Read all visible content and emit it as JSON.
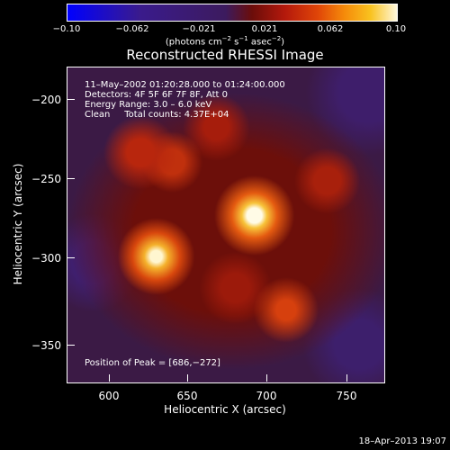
{
  "colorbar": {
    "ticks": [
      "−0.10",
      "−0.062",
      "−0.021",
      "0.021",
      "0.062",
      "0.10"
    ],
    "units": "(photons cm",
    "units_exp1": "−2",
    "units_mid1": " s",
    "units_exp2": "−1",
    "units_mid2": " asec",
    "units_exp3": "−2",
    "units_end": ")"
  },
  "title": "Reconstructed RHESSI Image",
  "info": {
    "line1": "11–May–2002 01:20:28.000 to 01:24:00.000",
    "line2": "Detectors: 4F 5F 6F 7F 8F, Att 0",
    "line3": "Energy Range: 3.0 – 6.0 keV",
    "line4": "Clean     Total counts: 4.37E+04"
  },
  "peak": "Position of Peak = [686,−272]",
  "axes": {
    "xlabel": "Heliocentric X (arcsec)",
    "ylabel": "Heliocentric Y (arcsec)",
    "xticks": [
      "600",
      "650",
      "700",
      "750"
    ],
    "yticks": [
      "−200",
      "−250",
      "−300",
      "−350"
    ]
  },
  "date": "18–Apr–2013 19:07"
}
